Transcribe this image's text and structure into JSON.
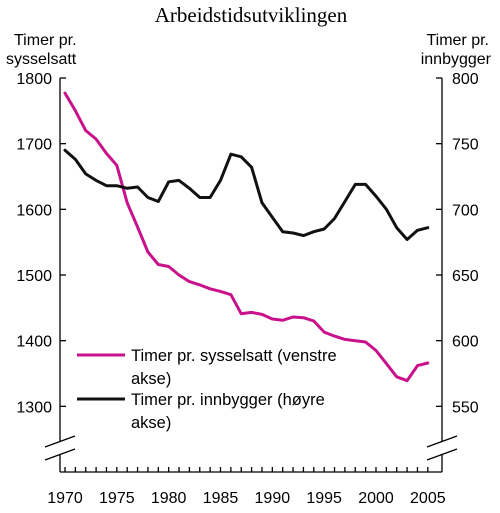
{
  "chart_data": {
    "type": "line",
    "title": "Arbeidstidsutviklingen",
    "ylabel_left": [
      "Timer pr.",
      "sysselsatt"
    ],
    "ylabel_right": [
      "Timer pr.",
      "innbygger"
    ],
    "x_ticks": [
      "1970",
      "1975",
      "1980",
      "1985",
      "1990",
      "1995",
      "2000",
      "2005"
    ],
    "y_left_ticks": [
      "1300",
      "1400",
      "1500",
      "1600",
      "1700",
      "1800"
    ],
    "y_right_ticks": [
      "550",
      "600",
      "650",
      "700",
      "750",
      "800"
    ],
    "xlim": [
      1970,
      2005.5
    ],
    "ylim_left": [
      1200,
      1800
    ],
    "ylim_right": [
      500,
      800
    ],
    "legend": {
      "placement": "lower-left",
      "entries": [
        [
          "Timer pr. sysselsatt (venstre",
          "akse)"
        ],
        [
          "Timer pr. innbygger (høyre",
          "akse)"
        ]
      ]
    },
    "x": [
      1970,
      1971,
      1972,
      1973,
      1974,
      1975,
      1976,
      1977,
      1978,
      1979,
      1980,
      1981,
      1982,
      1983,
      1984,
      1985,
      1986,
      1987,
      1988,
      1989,
      1990,
      1991,
      1992,
      1993,
      1994,
      1995,
      1996,
      1997,
      1998,
      1999,
      2000,
      2001,
      2002,
      2003,
      2004,
      2005
    ],
    "series": [
      {
        "name": "Timer pr. sysselsatt (venstre akse)",
        "axis": "left",
        "color": "#c8118a",
        "values": [
          1777,
          1750,
          1720,
          1707,
          1685,
          1667,
          1610,
          1573,
          1535,
          1516,
          1513,
          1500,
          1490,
          1485,
          1479,
          1475,
          1470,
          1441,
          1443,
          1440,
          1433,
          1431,
          1436,
          1435,
          1430,
          1413,
          1407,
          1402,
          1400,
          1398,
          1385,
          1365,
          1345,
          1339,
          1362,
          1366
        ]
      },
      {
        "name": "Timer pr. innbygger (høyre akse)",
        "axis": "right",
        "color": "#111111",
        "values": [
          745,
          738,
          727,
          722,
          718,
          718,
          716,
          717,
          709,
          706,
          721,
          722,
          716,
          709,
          709,
          722,
          742,
          740,
          732,
          705,
          694,
          683,
          682,
          680,
          683,
          685,
          693,
          706,
          719,
          719,
          710,
          700,
          686,
          677,
          684,
          686
        ]
      }
    ]
  }
}
